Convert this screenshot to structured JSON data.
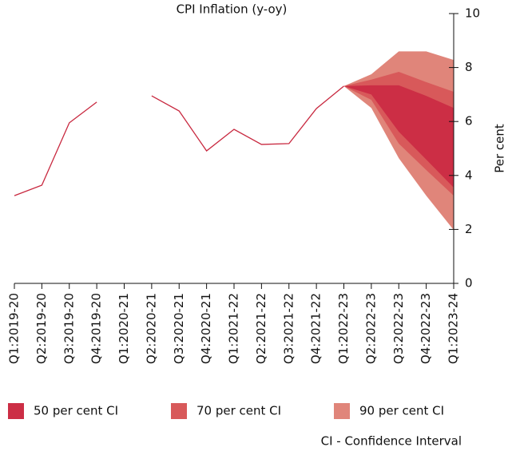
{
  "chart_data": {
    "type": "fan",
    "title": "CPI Inflation (y-oy)",
    "ylabel": "Per cent",
    "categories": [
      "Q1:2019-20",
      "Q2:2019-20",
      "Q3:2019-20",
      "Q4:2019-20",
      "Q1:2020-21",
      "Q2:2020-21",
      "Q3:2020-21",
      "Q4:2020-21",
      "Q1:2021-22",
      "Q2:2021-22",
      "Q3:2021-22",
      "Q4:2021-22",
      "Q1:2022-23",
      "Q2:2022-23",
      "Q3:2022-23",
      "Q4:2022-23",
      "Q1:2023-24"
    ],
    "series": [
      {
        "name": "CPI Inflation",
        "color": "#c8283f",
        "values": [
          3.25,
          3.64,
          5.95,
          6.72,
          null,
          6.95,
          6.39,
          4.91,
          5.71,
          5.15,
          5.18,
          6.48,
          7.31,
          null,
          null,
          null,
          null
        ]
      }
    ],
    "bands": [
      {
        "name": "90 per cent CI",
        "color": "#e0857a",
        "lower": [
          null,
          null,
          null,
          null,
          null,
          null,
          null,
          null,
          null,
          null,
          null,
          null,
          7.31,
          6.5,
          4.64,
          3.25,
          1.98
        ],
        "upper": [
          null,
          null,
          null,
          null,
          null,
          null,
          null,
          null,
          null,
          null,
          null,
          null,
          7.31,
          7.75,
          8.6,
          8.6,
          8.28
        ]
      },
      {
        "name": "70 per cent CI",
        "color": "#d8595a",
        "lower": [
          null,
          null,
          null,
          null,
          null,
          null,
          null,
          null,
          null,
          null,
          null,
          null,
          7.31,
          6.8,
          5.18,
          4.2,
          3.25
        ],
        "upper": [
          null,
          null,
          null,
          null,
          null,
          null,
          null,
          null,
          null,
          null,
          null,
          null,
          7.31,
          7.55,
          7.84,
          7.46,
          7.1
        ]
      },
      {
        "name": "50 per cent CI",
        "color": "#cc2e45",
        "lower": [
          null,
          null,
          null,
          null,
          null,
          null,
          null,
          null,
          null,
          null,
          null,
          null,
          7.31,
          7.0,
          5.62,
          4.59,
          3.55
        ],
        "upper": [
          null,
          null,
          null,
          null,
          null,
          null,
          null,
          null,
          null,
          null,
          null,
          null,
          7.31,
          7.34,
          7.34,
          6.95,
          6.5
        ]
      }
    ],
    "legend_order": [
      2,
      1,
      0
    ],
    "ylim": [
      0,
      10
    ],
    "yticks": [
      0,
      2,
      4,
      6,
      8,
      10
    ],
    "footnote": "CI - Confidence Interval"
  }
}
